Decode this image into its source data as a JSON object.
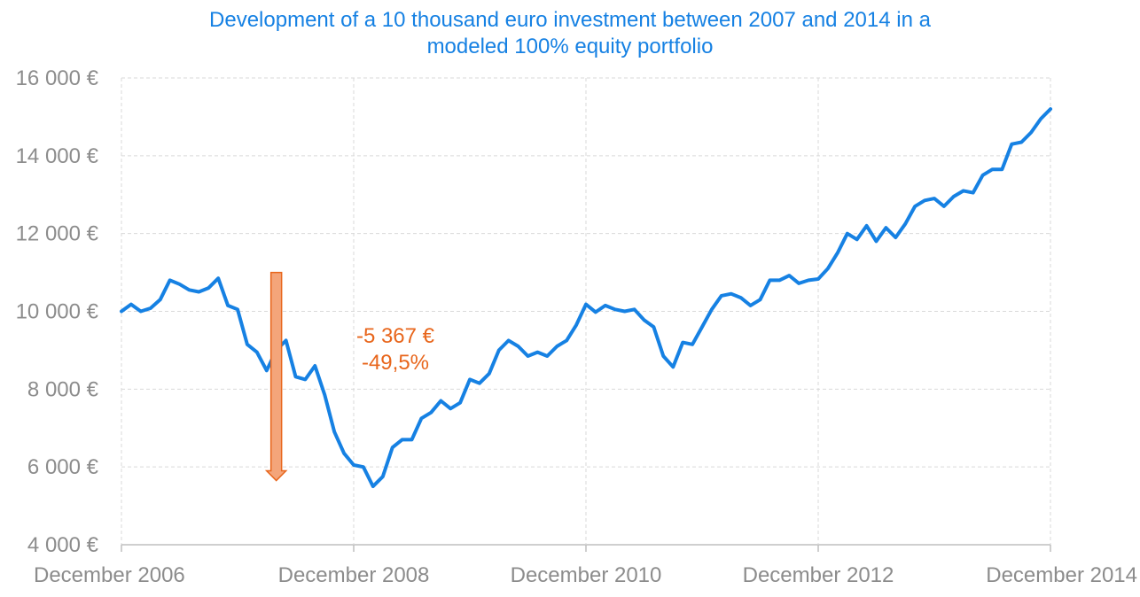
{
  "chart_data": {
    "type": "line",
    "title_lines": [
      "Development of a 10 thousand euro investment between 2007 and 2014 in a",
      "modeled 100% equity portfolio"
    ],
    "xlabel": "",
    "ylabel": "",
    "x_range": [
      "2006-12",
      "2014-12"
    ],
    "ylim": [
      4000,
      16000
    ],
    "yticks": [
      4000,
      6000,
      8000,
      10000,
      12000,
      14000,
      16000
    ],
    "ytick_labels": [
      "4 000 €",
      "6 000 €",
      "8 000 €",
      "10 000 €",
      "12 000 €",
      "14 000 €",
      "16 000 €"
    ],
    "xticks": [
      "2006-12",
      "2008-12",
      "2010-12",
      "2012-12",
      "2014-12"
    ],
    "xtick_labels": [
      "December 2006",
      "December 2008",
      "December 2010",
      "December 2012",
      "December 2014"
    ],
    "grid": true,
    "line_color": "#1681e3",
    "series": [
      {
        "x": [
          "2006-12",
          "2007-01",
          "2007-02",
          "2007-03",
          "2007-04",
          "2007-05",
          "2007-06",
          "2007-07",
          "2007-08",
          "2007-09",
          "2007-10",
          "2007-11",
          "2007-12",
          "2008-01",
          "2008-02",
          "2008-03",
          "2008-04",
          "2008-05",
          "2008-06",
          "2008-07",
          "2008-08",
          "2008-09",
          "2008-10",
          "2008-11",
          "2008-12",
          "2009-01",
          "2009-02",
          "2009-03",
          "2009-04",
          "2009-05",
          "2009-06",
          "2009-07",
          "2009-08",
          "2009-09",
          "2009-10",
          "2009-11",
          "2009-12",
          "2010-01",
          "2010-02",
          "2010-03",
          "2010-04",
          "2010-05",
          "2010-06",
          "2010-07",
          "2010-08",
          "2010-09",
          "2010-10",
          "2010-11",
          "2010-12",
          "2011-01",
          "2011-02",
          "2011-03",
          "2011-04",
          "2011-05",
          "2011-06",
          "2011-07",
          "2011-08",
          "2011-09",
          "2011-10",
          "2011-11",
          "2011-12",
          "2012-01",
          "2012-02",
          "2012-03",
          "2012-04",
          "2012-05",
          "2012-06",
          "2012-07",
          "2012-08",
          "2012-09",
          "2012-10",
          "2012-11",
          "2012-12",
          "2013-01",
          "2013-02",
          "2013-03",
          "2013-04",
          "2013-05",
          "2013-06",
          "2013-07",
          "2013-08",
          "2013-09",
          "2013-10",
          "2013-11",
          "2013-12",
          "2014-01",
          "2014-02",
          "2014-03",
          "2014-04",
          "2014-05",
          "2014-06",
          "2014-07",
          "2014-08",
          "2014-09",
          "2014-10",
          "2014-11",
          "2014-12"
        ],
        "values": [
          10000,
          10180,
          10000,
          10080,
          10300,
          10800,
          10700,
          10550,
          10500,
          10600,
          10850,
          10150,
          10050,
          9150,
          8950,
          8480,
          9000,
          9250,
          8320,
          8250,
          8600,
          7850,
          6900,
          6350,
          6050,
          6000,
          5500,
          5750,
          6500,
          6700,
          6700,
          7250,
          7400,
          7700,
          7500,
          7650,
          8250,
          8150,
          8400,
          9000,
          9250,
          9100,
          8850,
          8950,
          8850,
          9100,
          9250,
          9650,
          10180,
          9980,
          10150,
          10050,
          10000,
          10050,
          9780,
          9600,
          8850,
          8570,
          9200,
          9150,
          9600,
          10050,
          10400,
          10450,
          10350,
          10150,
          10300,
          10800,
          10800,
          10920,
          10720,
          10800,
          10830,
          11100,
          11500,
          12000,
          11850,
          12200,
          11800,
          12150,
          11900,
          12250,
          12700,
          12850,
          12900,
          12700,
          12950,
          13100,
          13050,
          13500,
          13650,
          13650,
          14300,
          14350,
          14600,
          14950,
          15200
        ]
      }
    ],
    "annotations": [
      {
        "lines": [
          "-5 367 €",
          "-49,5%"
        ],
        "color": "#e8661c"
      }
    ],
    "arrow": {
      "from_value": 11000,
      "to_value": 5650,
      "at_x": "2008-04",
      "fill": "#f4a57a",
      "stroke": "#e8661c"
    }
  }
}
